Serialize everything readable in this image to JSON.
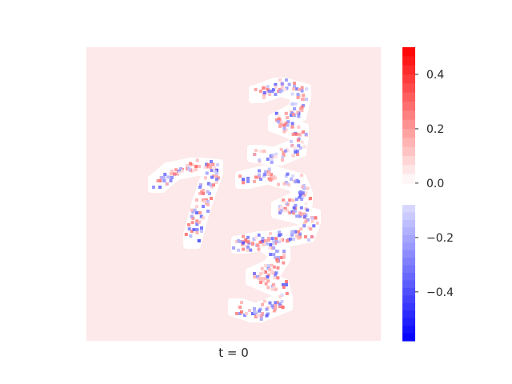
{
  "chart_data": {
    "type": "heatmap",
    "title": "",
    "xlabel": "t = 0",
    "ylabel": "",
    "description_of_content": "",
    "colormap": {
      "name": "bwr-discretized",
      "negative_color": "#0000ff",
      "zero_color": "#ffffff",
      "positive_color": "#ff0000",
      "background_value_color": "#fde9e9"
    },
    "colorbar": {
      "vmin": -0.58,
      "vmax": 0.5,
      "gap_range": [
        -0.08,
        0.0
      ],
      "ticks": [
        0.4,
        0.2,
        0.0,
        -0.2,
        -0.4
      ],
      "tick_labels": [
        "0.4",
        "0.2",
        "0.0",
        "−0.2",
        "−0.4"
      ]
    },
    "digits_shown": [
      "7",
      "3",
      "3"
    ]
  }
}
